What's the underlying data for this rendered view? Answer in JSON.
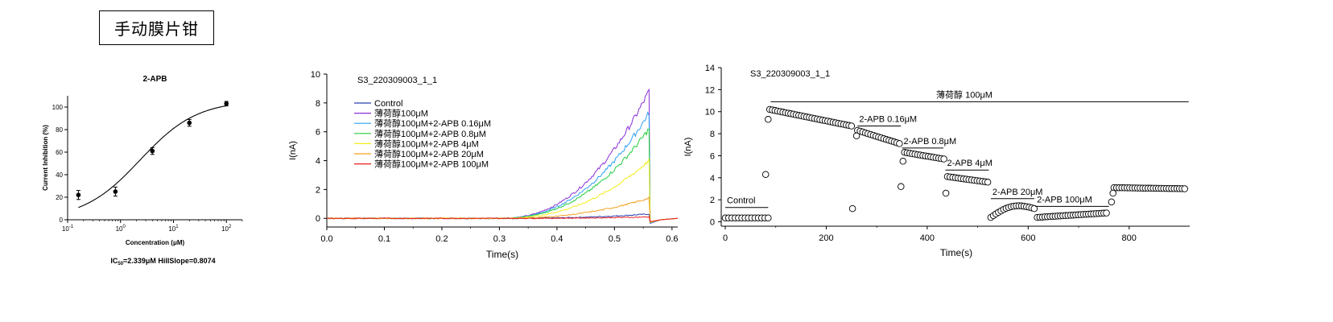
{
  "header": {
    "title": "手动膜片钳"
  },
  "chart_data": [
    {
      "type": "scatter",
      "title": "2-APB",
      "xlabel": "Concentration (μM)",
      "ylabel": "Current Inhibition (%)",
      "xscale": "log",
      "xlim": [
        0.1,
        200
      ],
      "ylim": [
        0,
        110
      ],
      "yticks": [
        "0",
        "20",
        "40",
        "60",
        "80",
        "100"
      ],
      "xticks": [
        {
          "base": "10",
          "exp": "-1",
          "value": 0.1
        },
        {
          "base": "10",
          "exp": "0",
          "value": 1
        },
        {
          "base": "10",
          "exp": "1",
          "value": 10
        },
        {
          "base": "10",
          "exp": "2",
          "value": 100
        }
      ],
      "points": [
        {
          "x": 0.16,
          "y": 22,
          "err": 4
        },
        {
          "x": 0.8,
          "y": 25,
          "err": 4
        },
        {
          "x": 4,
          "y": 61,
          "err": 3
        },
        {
          "x": 20,
          "y": 86,
          "err": 3
        },
        {
          "x": 100,
          "y": 103,
          "err": 2
        }
      ],
      "fit": {
        "model": "hill",
        "ic50": 2.339,
        "hill_slope": 0.8074,
        "bottom": 0,
        "top": 106
      },
      "annotation": {
        "pre": "IC",
        "sub": "50",
        "post": "=2.339μM HillSlope=0.8074"
      }
    },
    {
      "type": "line",
      "title": "S3_220309003_1_1",
      "xlabel": "Time(s)",
      "ylabel": "I(nA)",
      "xlim": [
        0,
        0.61
      ],
      "ylim": [
        -0.6,
        10
      ],
      "xticks": [
        "0.0",
        "0.1",
        "0.2",
        "0.3",
        "0.4",
        "0.5",
        "0.6"
      ],
      "yticks": [
        "0",
        "2",
        "4",
        "6",
        "8",
        "10"
      ],
      "onset": 0.3,
      "end": 0.56,
      "series": [
        {
          "name": "Control",
          "color": "#2b3fb0",
          "peak": 0.3
        },
        {
          "name": "薄荷醇100μM",
          "color": "#8b2fd6",
          "peak": 8.8
        },
        {
          "name": "薄荷醇100μM+2-APB 0.16μM",
          "color": "#2ea0f0",
          "peak": 7.3
        },
        {
          "name": "薄荷醇100μM+2-APB 0.8μM",
          "color": "#22cc3a",
          "peak": 6.2
        },
        {
          "name": "薄荷醇100μM+2-APB 4μM",
          "color": "#f2ee1c",
          "peak": 4.0
        },
        {
          "name": "薄荷醇100μM+2-APB 20μM",
          "color": "#f5a020",
          "peak": 1.4
        },
        {
          "name": "薄荷醇100μM+2-APB 100μM",
          "color": "#ee1c1c",
          "peak": 0.1
        }
      ]
    },
    {
      "type": "scatter",
      "title": "S3_220309003_1_1",
      "xlabel": "Time(s)",
      "ylabel": "I(nA)",
      "xlim": [
        -8,
        920
      ],
      "ylim": [
        -0.4,
        14
      ],
      "xticks": [
        "0",
        "200",
        "400",
        "600",
        "800"
      ],
      "yticks": [
        "0",
        "2",
        "4",
        "6",
        "8",
        "10",
        "12",
        "14"
      ],
      "segments": [
        {
          "label": "Control",
          "x_start": 0,
          "x_end": 85,
          "y": 0.35,
          "n": 14
        },
        {
          "label": "薄荷醇 100μM",
          "x_start": 88,
          "x_end": 250,
          "y_start": 10.2,
          "y_end": 8.7,
          "n": 32
        },
        {
          "label": "2-APB 0.16μM",
          "x_start": 262,
          "x_end": 345,
          "y_start": 8.3,
          "y_end": 7.1,
          "n": 17
        },
        {
          "label": "2-APB 0.8μM",
          "x_start": 355,
          "x_end": 433,
          "y_start": 6.3,
          "y_end": 5.7,
          "n": 16
        },
        {
          "label": "2-APB 4μM",
          "x_start": 440,
          "x_end": 520,
          "y_start": 4.1,
          "y_end": 3.6,
          "n": 16
        },
        {
          "label": "2-APB 20μM",
          "x_start": 526,
          "x_end": 612,
          "y_start": 0.4,
          "y_end": 1.2,
          "n": 18
        },
        {
          "label": "2-APB 100μM",
          "x_start": 618,
          "x_end": 755,
          "y_start": 0.4,
          "y_end": 0.8,
          "n": 28
        },
        {
          "label": "",
          "x_start": 770,
          "x_end": 910,
          "y_start": 3.1,
          "y_end": 3.0,
          "n": 28
        }
      ],
      "transients": [
        {
          "x": 80,
          "y": 4.3
        },
        {
          "x": 85,
          "y": 9.3
        },
        {
          "x": 252,
          "y": 1.2
        },
        {
          "x": 260,
          "y": 7.8
        },
        {
          "x": 348,
          "y": 3.2
        },
        {
          "x": 352,
          "y": 5.5
        },
        {
          "x": 437,
          "y": 2.6
        },
        {
          "x": 765,
          "y": 1.8
        },
        {
          "x": 768,
          "y": 2.6
        }
      ],
      "bars": [
        {
          "label": "Control",
          "x_start": 0,
          "x_end": 85,
          "y": 1.3
        },
        {
          "label": "薄荷醇 100μM",
          "x_start": 90,
          "x_end": 918,
          "y": 10.9
        },
        {
          "label": "2-APB 0.16μM",
          "x_start": 262,
          "x_end": 348,
          "y": 8.7
        },
        {
          "label": "2-APB 0.8μM",
          "x_start": 350,
          "x_end": 432,
          "y": 6.7
        },
        {
          "label": "2-APB 4μM",
          "x_start": 436,
          "x_end": 522,
          "y": 4.7
        },
        {
          "label": "2-APB 20μM",
          "x_start": 526,
          "x_end": 612,
          "y": 2.1
        },
        {
          "label": "2-APB 100μM",
          "x_start": 614,
          "x_end": 760,
          "y": 1.4
        }
      ]
    }
  ]
}
